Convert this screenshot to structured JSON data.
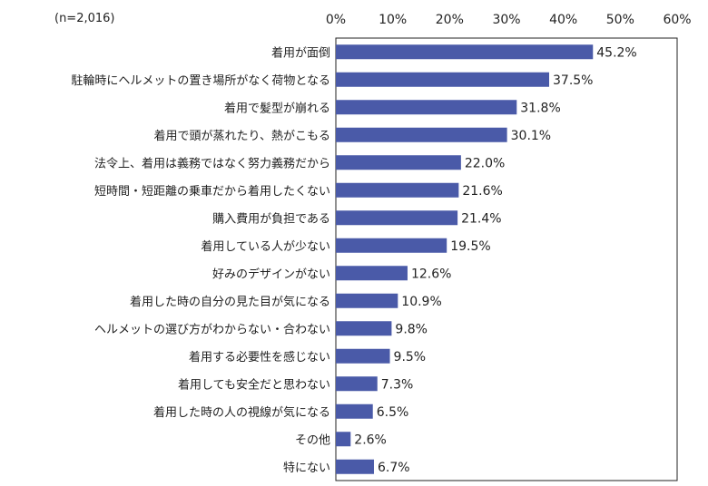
{
  "chart_data": {
    "type": "bar",
    "orientation": "horizontal",
    "note": "(n=2,016)",
    "categories": [
      "着用が面倒",
      "駐輪時にヘルメットの置き場所がなく荷物となる",
      "着用で髪型が崩れる",
      "着用で頭が蒸れたり、熱がこもる",
      "法令上、着用は義務ではなく努力義務だから",
      "短時間・短距離の乗車だから着用したくない",
      "購入費用が負担である",
      "着用している人が少ない",
      "好みのデザインがない",
      "着用した時の自分の見た目が気になる",
      "ヘルメットの選び方がわからない・合わない",
      "着用する必要性を感じない",
      "着用しても安全だと思わない",
      "着用した時の人の視線が気になる",
      "その他",
      "特にない"
    ],
    "values": [
      45.2,
      37.5,
      31.8,
      30.1,
      22.0,
      21.6,
      21.4,
      19.5,
      12.6,
      10.9,
      9.8,
      9.5,
      7.3,
      6.5,
      2.6,
      6.7
    ],
    "value_labels": [
      "45.2%",
      "37.5%",
      "31.8%",
      "30.1%",
      "22.0%",
      "21.6%",
      "21.4%",
      "19.5%",
      "12.6%",
      "10.9%",
      "9.8%",
      "9.5%",
      "7.3%",
      "6.5%",
      "2.6%",
      "6.7%"
    ],
    "xlim": [
      0,
      60
    ],
    "xticks": [
      0,
      10,
      20,
      30,
      40,
      50,
      60
    ],
    "xtick_labels": [
      "0%",
      "10%",
      "20%",
      "30%",
      "40%",
      "50%",
      "60%"
    ],
    "x_axis_position": "top",
    "grid": false,
    "bar_color": "#4A5AA8",
    "title": "",
    "xlabel": "",
    "ylabel": ""
  }
}
